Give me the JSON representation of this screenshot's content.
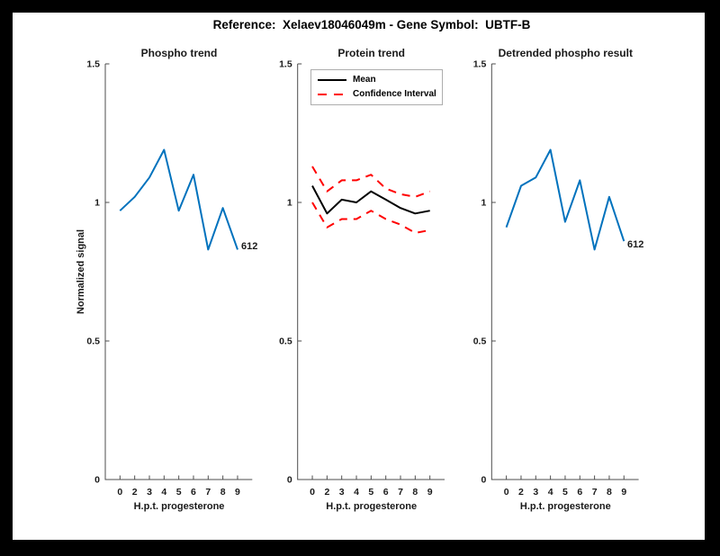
{
  "figure": {
    "title": "Reference:  Xelaev18046049m - Gene Symbol:  UBTF-B",
    "background": "#000000",
    "canvas_color": "#ffffff",
    "axis_color": "#4d4d4d",
    "text_color": "#1a1a1a"
  },
  "chart_data": [
    {
      "type": "line",
      "title": "Phospho trend",
      "xlabel": "H.p.t. progesterone",
      "ylabel": "Normalized signal",
      "x_tick_labels": [
        "0",
        "2",
        "3",
        "4",
        "5",
        "6",
        "7",
        "8",
        "9"
      ],
      "y_ticks": [
        0,
        0.5,
        1,
        1.5
      ],
      "y_tick_labels": [
        "0",
        "0.5",
        "1",
        "1.5"
      ],
      "ylim": [
        0,
        1.5
      ],
      "grid": false,
      "series": [
        {
          "name": "phospho-trend",
          "color": "#0072BD",
          "style": "solid",
          "values": [
            0.97,
            1.02,
            1.09,
            1.19,
            0.97,
            1.1,
            0.83,
            0.98,
            0.83
          ]
        }
      ],
      "end_label": "612"
    },
    {
      "type": "line",
      "title": "Protein trend",
      "xlabel": "H.p.t. progesterone",
      "ylabel": "",
      "x_tick_labels": [
        "0",
        "2",
        "3",
        "4",
        "5",
        "6",
        "7",
        "8",
        "9"
      ],
      "y_ticks": [
        0,
        0.5,
        1,
        1.5
      ],
      "y_tick_labels": [
        "0",
        "0.5",
        "1",
        "1.5"
      ],
      "ylim": [
        0,
        1.5
      ],
      "grid": false,
      "legend": {
        "position": "top-left",
        "entries": [
          "Mean",
          "Confidence Interval"
        ]
      },
      "series": [
        {
          "name": "mean",
          "color": "#000000",
          "style": "solid",
          "values": [
            1.06,
            0.96,
            1.01,
            1.0,
            1.04,
            1.01,
            0.98,
            0.96,
            0.97
          ]
        },
        {
          "name": "confidence-interval-upper",
          "color": "#FF0000",
          "style": "dashed",
          "values": [
            1.13,
            1.04,
            1.08,
            1.08,
            1.1,
            1.05,
            1.03,
            1.02,
            1.04
          ]
        },
        {
          "name": "confidence-interval-lower",
          "color": "#FF0000",
          "style": "dashed",
          "values": [
            1.0,
            0.91,
            0.94,
            0.94,
            0.97,
            0.94,
            0.92,
            0.89,
            0.9
          ]
        }
      ]
    },
    {
      "type": "line",
      "title": "Detrended phospho result",
      "xlabel": "H.p.t. progesterone",
      "ylabel": "",
      "x_tick_labels": [
        "0",
        "2",
        "3",
        "4",
        "5",
        "6",
        "7",
        "8",
        "9"
      ],
      "y_ticks": [
        0,
        0.5,
        1,
        1.5
      ],
      "y_tick_labels": [
        "0",
        "0.5",
        "1",
        "1.5"
      ],
      "ylim": [
        0,
        1.5
      ],
      "grid": false,
      "series": [
        {
          "name": "detrended-phospho",
          "color": "#0072BD",
          "style": "solid",
          "values": [
            0.91,
            1.06,
            1.09,
            1.19,
            0.93,
            1.08,
            0.83,
            1.02,
            0.86
          ]
        }
      ],
      "end_label": "612"
    }
  ]
}
